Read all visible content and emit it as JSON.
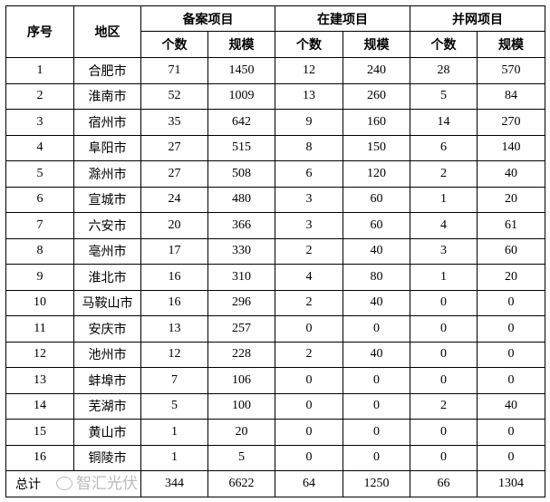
{
  "headers": {
    "index": "序号",
    "region": "地区",
    "groups": [
      "备案项目",
      "在建项目",
      "并网项目"
    ],
    "sub": [
      "个数",
      "规模",
      "个数",
      "规模",
      "个数",
      "规模"
    ]
  },
  "rows": [
    [
      "1",
      "合肥市",
      "71",
      "1450",
      "12",
      "240",
      "28",
      "570"
    ],
    [
      "2",
      "淮南市",
      "52",
      "1009",
      "13",
      "260",
      "5",
      "84"
    ],
    [
      "3",
      "宿州市",
      "35",
      "642",
      "9",
      "160",
      "14",
      "270"
    ],
    [
      "4",
      "阜阳市",
      "27",
      "515",
      "8",
      "150",
      "6",
      "140"
    ],
    [
      "5",
      "滁州市",
      "27",
      "508",
      "6",
      "120",
      "2",
      "40"
    ],
    [
      "6",
      "宣城市",
      "24",
      "480",
      "3",
      "60",
      "1",
      "20"
    ],
    [
      "7",
      "六安市",
      "20",
      "366",
      "3",
      "60",
      "4",
      "61"
    ],
    [
      "8",
      "亳州市",
      "17",
      "330",
      "2",
      "40",
      "3",
      "60"
    ],
    [
      "9",
      "淮北市",
      "16",
      "310",
      "4",
      "80",
      "1",
      "20"
    ],
    [
      "10",
      "马鞍山市",
      "16",
      "296",
      "2",
      "40",
      "0",
      "0"
    ],
    [
      "11",
      "安庆市",
      "13",
      "257",
      "0",
      "0",
      "0",
      "0"
    ],
    [
      "12",
      "池州市",
      "12",
      "228",
      "2",
      "40",
      "0",
      "0"
    ],
    [
      "13",
      "蚌埠市",
      "7",
      "106",
      "0",
      "0",
      "0",
      "0"
    ],
    [
      "14",
      "芜湖市",
      "5",
      "100",
      "0",
      "0",
      "2",
      "40"
    ],
    [
      "15",
      "黄山市",
      "1",
      "20",
      "0",
      "0",
      "0",
      "0"
    ],
    [
      "16",
      "铜陵市",
      "1",
      "5",
      "0",
      "0",
      "0",
      "0"
    ]
  ],
  "total": {
    "label": "总计",
    "values": [
      "344",
      "6622",
      "64",
      "1250",
      "66",
      "1304"
    ]
  },
  "watermark": {
    "text": "智汇光伏",
    "icon": "wechat-icon"
  }
}
